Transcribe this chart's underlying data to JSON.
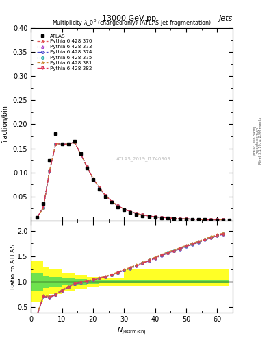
{
  "title_top": "13000 GeV pp",
  "title_right": "Jets",
  "plot_title": "Multiplicity $\\lambda\\_0^0$ (charged only) (ATLAS jet fragmentation)",
  "ylabel_main": "fraction/bin",
  "ylabel_ratio": "Ratio to ATLAS",
  "xlabel": "$N_{\\mathrm{jettrm(ch)}}$",
  "watermark": "ATLAS_2019_I1740909",
  "right_label": "Rivet 3.1.10; ≥ 2.9M events",
  "arxiv_label": "[arXiv:1306.3436]",
  "mcplots_label": "mcplots.cern.ch",
  "x_atlas": [
    2,
    4,
    6,
    8,
    10,
    12,
    14,
    16,
    18,
    20,
    22,
    24,
    26,
    28,
    30,
    32,
    34,
    36,
    38,
    40,
    42,
    44,
    46,
    48,
    50,
    52,
    54,
    56,
    58,
    60,
    62,
    64
  ],
  "y_atlas": [
    0.007,
    0.035,
    0.125,
    0.18,
    0.16,
    0.16,
    0.165,
    0.14,
    0.11,
    0.085,
    0.065,
    0.05,
    0.038,
    0.029,
    0.022,
    0.017,
    0.013,
    0.01,
    0.008,
    0.007,
    0.006,
    0.005,
    0.004,
    0.003,
    0.003,
    0.002,
    0.002,
    0.002,
    0.001,
    0.001,
    0.001,
    0.001
  ],
  "mc_x": [
    2,
    4,
    6,
    8,
    10,
    12,
    14,
    16,
    18,
    20,
    22,
    24,
    26,
    28,
    30,
    32,
    34,
    36,
    38,
    40,
    42,
    44,
    46,
    48,
    50,
    52,
    54,
    56,
    58,
    60,
    62
  ],
  "mc_y_base": [
    0.007,
    0.027,
    0.104,
    0.16,
    0.158,
    0.158,
    0.162,
    0.138,
    0.112,
    0.087,
    0.068,
    0.052,
    0.04,
    0.031,
    0.024,
    0.019,
    0.015,
    0.012,
    0.01,
    0.008,
    0.007,
    0.006,
    0.005,
    0.004,
    0.004,
    0.003,
    0.003,
    0.002,
    0.002,
    0.002,
    0.002
  ],
  "ratio_x": [
    2,
    4,
    6,
    8,
    10,
    12,
    14,
    16,
    18,
    20,
    22,
    24,
    26,
    28,
    30,
    32,
    34,
    36,
    38,
    40,
    42,
    44,
    46,
    48,
    50,
    52,
    54,
    56,
    58,
    60,
    62
  ],
  "ratio_base": [
    0.35,
    0.72,
    0.7,
    0.75,
    0.83,
    0.9,
    0.96,
    0.99,
    1.01,
    1.04,
    1.07,
    1.1,
    1.14,
    1.18,
    1.23,
    1.27,
    1.32,
    1.37,
    1.42,
    1.47,
    1.52,
    1.57,
    1.61,
    1.65,
    1.7,
    1.74,
    1.78,
    1.83,
    1.87,
    1.91,
    1.94
  ],
  "band_edges": [
    0,
    4,
    6,
    10,
    14,
    18,
    22,
    30,
    40,
    50,
    64
  ],
  "band_green_lo": [
    0.82,
    0.88,
    0.91,
    0.93,
    0.95,
    0.96,
    0.97,
    0.97,
    0.97,
    0.97
  ],
  "band_green_hi": [
    1.18,
    1.12,
    1.09,
    1.07,
    1.05,
    1.04,
    1.03,
    1.03,
    1.03,
    1.03
  ],
  "band_yellow_lo": [
    0.6,
    0.7,
    0.76,
    0.82,
    0.87,
    0.9,
    0.92,
    0.92,
    0.92,
    0.92
  ],
  "band_yellow_hi": [
    1.4,
    1.3,
    1.24,
    1.18,
    1.13,
    1.1,
    1.08,
    1.25,
    1.25,
    1.25
  ],
  "color_370": "#e05050",
  "color_373": "#aa44cc",
  "color_374": "#4444cc",
  "color_375": "#22aaaa",
  "color_381": "#cc8833",
  "color_382": "#dd3355",
  "line_style_370": "--",
  "line_style_373": ":",
  "line_style_374": "-.",
  "line_style_375": ":",
  "line_style_381": "--",
  "line_style_382": "-.",
  "marker_370": "^",
  "marker_373": "^",
  "marker_374": "o",
  "marker_375": "o",
  "marker_381": "^",
  "marker_382": "v",
  "xlim": [
    0,
    65
  ],
  "ylim_main": [
    0,
    0.4
  ],
  "ylim_ratio": [
    0.4,
    2.2
  ],
  "yticks_main": [
    0.05,
    0.1,
    0.15,
    0.2,
    0.25,
    0.3,
    0.35,
    0.4
  ],
  "yticks_ratio": [
    0.5,
    1.0,
    1.5,
    2.0
  ],
  "xticks": [
    0,
    10,
    20,
    30,
    40,
    50,
    60
  ]
}
